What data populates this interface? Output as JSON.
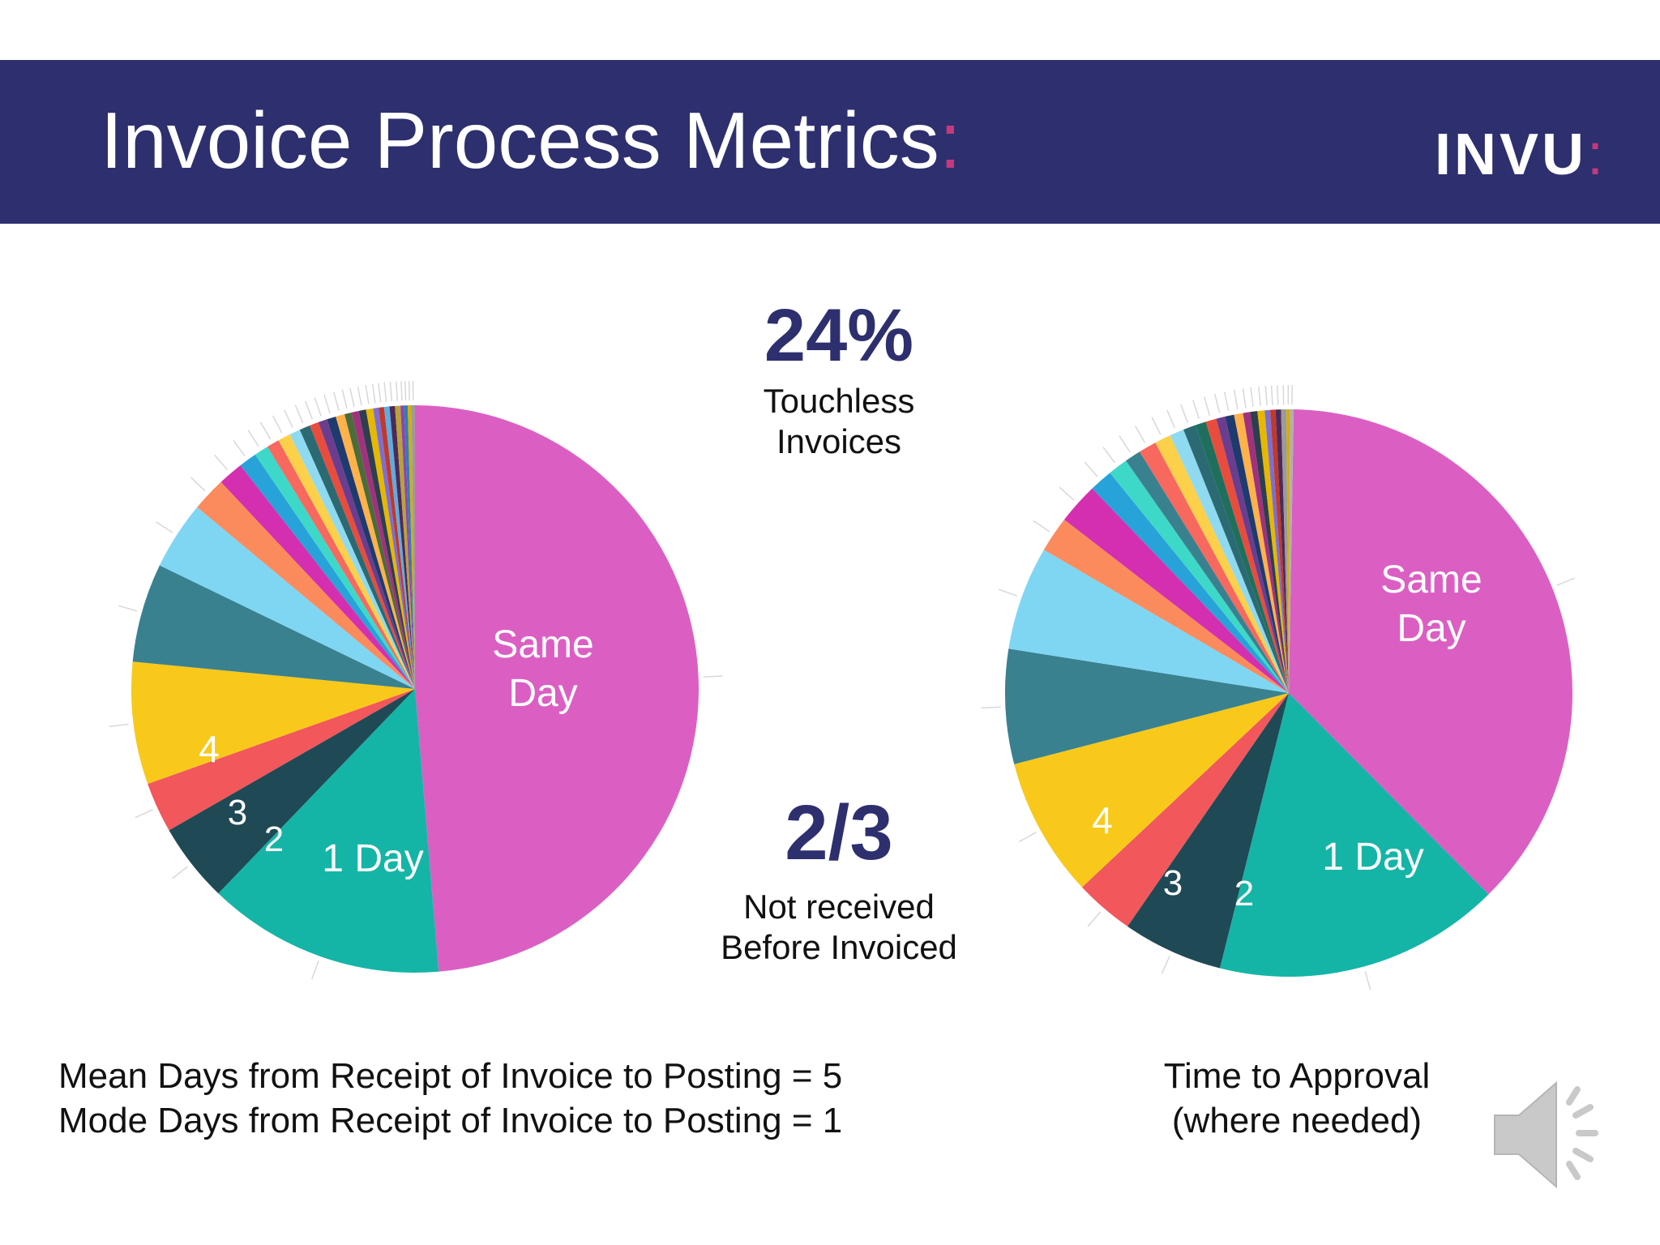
{
  "header": {
    "title": "Invoice Process Metrics",
    "title_accent": ":",
    "logo": "INVU",
    "logo_accent": ":",
    "bg_color": "#2e2f6e",
    "accent_color": "#c33a7c"
  },
  "stats": {
    "touchless": {
      "value": "24%",
      "label_line1": "Touchless",
      "label_line2": "Invoices"
    },
    "not_received": {
      "value": "2/3",
      "label_line1": "Not received",
      "label_line2": "Before Invoiced"
    }
  },
  "footer": {
    "mean_line": "Mean Days from Receipt of Invoice to Posting = 5",
    "mode_line": "Mode Days from Receipt of Invoice to Posting = 1",
    "approval_line1": "Time to Approval",
    "approval_line2": "(where needed)"
  },
  "speaker_icon": "speaker-icon",
  "chart_data": [
    {
      "type": "pie",
      "title": "",
      "slices": [
        {
          "label": "Same Day",
          "value": 47.5,
          "color": "#db5fc3"
        },
        {
          "label": "1 Day",
          "value": 13.2,
          "color": "#14b5a6"
        },
        {
          "label": "2",
          "value": 4.4,
          "color": "#1f4a55"
        },
        {
          "label": "3",
          "value": 2.8,
          "color": "#f1575b"
        },
        {
          "label": "4",
          "value": 6.8,
          "color": "#f8c91b"
        },
        {
          "label": "",
          "value": 5.5,
          "color": "#3a8190"
        },
        {
          "label": "",
          "value": 3.8,
          "color": "#7fd6f3"
        },
        {
          "label": "",
          "value": 1.9,
          "color": "#fb8b5c"
        },
        {
          "label": "",
          "value": 1.4,
          "color": "#d42fb0"
        },
        {
          "label": "",
          "value": 1.0,
          "color": "#27a3d9"
        },
        {
          "label": "",
          "value": 0.8,
          "color": "#3ed8c9"
        },
        {
          "label": "",
          "value": 0.7,
          "color": "#f7685e"
        },
        {
          "label": "",
          "value": 0.7,
          "color": "#fcd04b"
        },
        {
          "label": "",
          "value": 0.6,
          "color": "#8fdaf0"
        },
        {
          "label": "",
          "value": 0.6,
          "color": "#2b6a73"
        },
        {
          "label": "",
          "value": 0.5,
          "color": "#e84c3c"
        },
        {
          "label": "",
          "value": 0.5,
          "color": "#6a3d8f"
        },
        {
          "label": "",
          "value": 0.5,
          "color": "#1e3a6e"
        },
        {
          "label": "",
          "value": 0.5,
          "color": "#ffb24a"
        },
        {
          "label": "",
          "value": 0.4,
          "color": "#4a6d3a"
        },
        {
          "label": "",
          "value": 0.4,
          "color": "#a0317d"
        },
        {
          "label": "",
          "value": 0.4,
          "color": "#2c3e50"
        },
        {
          "label": "",
          "value": 0.4,
          "color": "#e6b800"
        },
        {
          "label": "",
          "value": 0.3,
          "color": "#7b6fd1"
        },
        {
          "label": "",
          "value": 0.3,
          "color": "#c0392b"
        },
        {
          "label": "",
          "value": 0.3,
          "color": "#5dade2"
        },
        {
          "label": "",
          "value": 0.3,
          "color": "#4b2a59"
        },
        {
          "label": "",
          "value": 0.3,
          "color": "#b9a23a"
        },
        {
          "label": "",
          "value": 0.2,
          "color": "#8e44ad"
        },
        {
          "label": "",
          "value": 0.2,
          "color": "#2980b9"
        },
        {
          "label": "",
          "value": 0.2,
          "color": "#d4ac0d"
        },
        {
          "label": "",
          "value": 0.2,
          "color": "#9b9b9b"
        }
      ]
    },
    {
      "type": "pie",
      "title": "Time to Approval (where needed)",
      "slices": [
        {
          "label": "Same Day",
          "value": 36.5,
          "color": "#db5fc3"
        },
        {
          "label": "1 Day",
          "value": 16.0,
          "color": "#14b5a6"
        },
        {
          "label": "2",
          "value": 5.6,
          "color": "#1f4a55"
        },
        {
          "label": "3",
          "value": 3.3,
          "color": "#f1575b"
        },
        {
          "label": "4",
          "value": 7.8,
          "color": "#f8c91b"
        },
        {
          "label": "",
          "value": 6.4,
          "color": "#3a8190"
        },
        {
          "label": "",
          "value": 5.8,
          "color": "#7fd6f3"
        },
        {
          "label": "",
          "value": 2.0,
          "color": "#fb8b5c"
        },
        {
          "label": "",
          "value": 2.3,
          "color": "#d42fb0"
        },
        {
          "label": "",
          "value": 1.3,
          "color": "#27a3d9"
        },
        {
          "label": "",
          "value": 1.1,
          "color": "#3ed8c9"
        },
        {
          "label": "",
          "value": 0.9,
          "color": "#3a8190"
        },
        {
          "label": "",
          "value": 1.0,
          "color": "#f7685e"
        },
        {
          "label": "",
          "value": 0.9,
          "color": "#fcd04b"
        },
        {
          "label": "",
          "value": 0.8,
          "color": "#8fdaf0"
        },
        {
          "label": "",
          "value": 0.7,
          "color": "#2b6a73"
        },
        {
          "label": "",
          "value": 0.6,
          "color": "#1e6f5c"
        },
        {
          "label": "",
          "value": 0.6,
          "color": "#e84c3c"
        },
        {
          "label": "",
          "value": 0.5,
          "color": "#6a3d8f"
        },
        {
          "label": "",
          "value": 0.5,
          "color": "#1e3a6e"
        },
        {
          "label": "",
          "value": 0.5,
          "color": "#ffb24a"
        },
        {
          "label": "",
          "value": 0.4,
          "color": "#a0317d"
        },
        {
          "label": "",
          "value": 0.4,
          "color": "#2c3e50"
        },
        {
          "label": "",
          "value": 0.4,
          "color": "#e6b800"
        },
        {
          "label": "",
          "value": 0.3,
          "color": "#7b6fd1"
        },
        {
          "label": "",
          "value": 0.3,
          "color": "#c0392b"
        },
        {
          "label": "",
          "value": 0.3,
          "color": "#4b2a59"
        },
        {
          "label": "",
          "value": 0.3,
          "color": "#9b9b9b"
        },
        {
          "label": "",
          "value": 0.2,
          "color": "#d4ac0d"
        },
        {
          "label": "",
          "value": 0.2,
          "color": "#b0b0b0"
        }
      ]
    }
  ]
}
